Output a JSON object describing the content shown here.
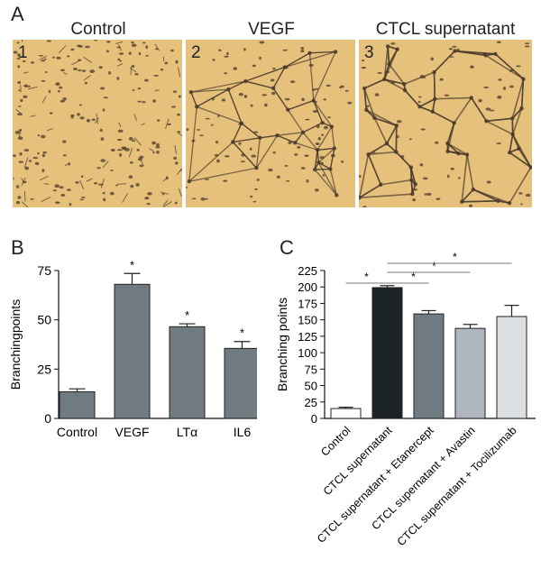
{
  "panel_a": {
    "letter": "A",
    "images": [
      {
        "title": "Control",
        "number": "1",
        "density": "sparse"
      },
      {
        "title": "VEGF",
        "number": "2",
        "density": "network"
      },
      {
        "title": "CTCL supernatant",
        "number": "3",
        "density": "dense-network"
      }
    ]
  },
  "colors": {
    "bar_gray": "#6f7b80",
    "bar_black": "#1c2426",
    "bar_light": "#b0b6bf",
    "bar_lighter": "#dcdfe2",
    "bar_white": "#ffffff",
    "micro_bg": "#e6c17c",
    "cell": "#4a3a2c"
  },
  "chart_data": [
    {
      "panel": "B",
      "type": "bar",
      "ylabel": "Branchingpoints",
      "xlabel": "",
      "ylim": [
        0,
        75
      ],
      "yticks": [
        0,
        25,
        50,
        75
      ],
      "categories": [
        "Control",
        "VEGF",
        "LTα",
        "IL6"
      ],
      "values": [
        13.5,
        68,
        46.5,
        35.5
      ],
      "errors": [
        1.5,
        5.5,
        1.5,
        3.5
      ],
      "significance": [
        "",
        "*",
        "*",
        "*"
      ]
    },
    {
      "panel": "C",
      "type": "bar",
      "ylabel": "Branching points",
      "xlabel": "",
      "ylim": [
        0,
        225
      ],
      "yticks": [
        0,
        25,
        50,
        75,
        100,
        125,
        150,
        175,
        200,
        225
      ],
      "categories": [
        "Control",
        "CTCL supernatant",
        "CTCL supernatant + Etanercept",
        "CTCL supernatant + Avastin",
        "CTCL supernatant + Tocilizumab"
      ],
      "values": [
        15,
        199,
        159,
        137,
        155
      ],
      "errors": [
        2,
        3,
        5,
        6,
        17
      ],
      "significance_brackets": [
        {
          "from": 0,
          "to": 1,
          "label": "*"
        },
        {
          "from": 1,
          "to": 2,
          "label": "*"
        },
        {
          "from": 1,
          "to": 3,
          "label": "*"
        },
        {
          "from": 1,
          "to": 4,
          "label": "*"
        }
      ]
    }
  ]
}
